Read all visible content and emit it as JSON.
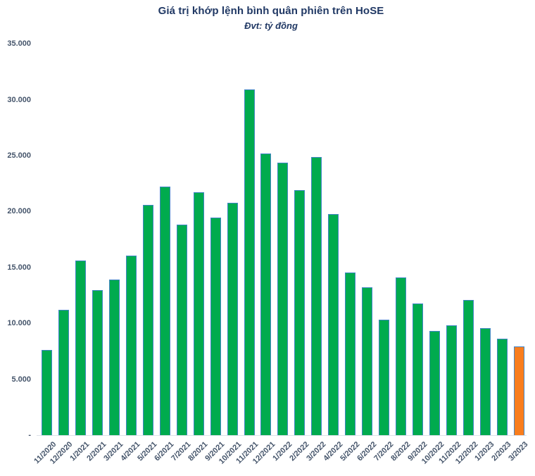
{
  "chart": {
    "title": "Giá trị khớp lệnh bình quân phiên trên HoSE",
    "subtitle": "Đvt: tỷ đồng"
  },
  "chart_data": {
    "type": "bar",
    "title": "Giá trị khớp lệnh bình quân phiên trên HoSE",
    "subtitle": "Đvt: tỷ đồng",
    "unit": "tỷ đồng",
    "categories": [
      "11/2020",
      "12/2020",
      "1/2021",
      "2/2021",
      "3/2021",
      "4/2021",
      "5/2021",
      "6/2021",
      "7/2021",
      "8/2021",
      "9/2021",
      "10/2021",
      "11/2021",
      "12/2021",
      "1/2022",
      "2/2022",
      "3/2022",
      "4/2022",
      "5/2022",
      "6/2022",
      "7/2022",
      "8/2022",
      "9/2022",
      "10/2022",
      "11/2022",
      "12/2022",
      "1/2023",
      "2/2023",
      "3/2023"
    ],
    "values": [
      7600,
      11200,
      15600,
      13000,
      13900,
      16050,
      20600,
      22200,
      18800,
      21700,
      19450,
      20750,
      30950,
      25200,
      24400,
      21900,
      24850,
      19750,
      14550,
      13200,
      10300,
      14100,
      11800,
      9300,
      9850,
      12100,
      9600,
      8600,
      7950
    ],
    "xlabel": "",
    "ylabel": "",
    "ylim": [
      0,
      35000
    ],
    "ytick_interval": 5000,
    "ytick_labels": [
      "-",
      "5.000",
      "10.000",
      "15.000",
      "20.000",
      "25.000",
      "30.000",
      "35.000"
    ],
    "grid": false,
    "legend_position": "none",
    "colors": {
      "bar_fill": "#00AB4E",
      "bar_highlight_fill": "#F97D1D",
      "highlight_category": "3/2023",
      "bar_border": "#4285C5",
      "title_text": "#203864",
      "axis_text": "#44546A",
      "baseline": "#dde1e8"
    }
  }
}
